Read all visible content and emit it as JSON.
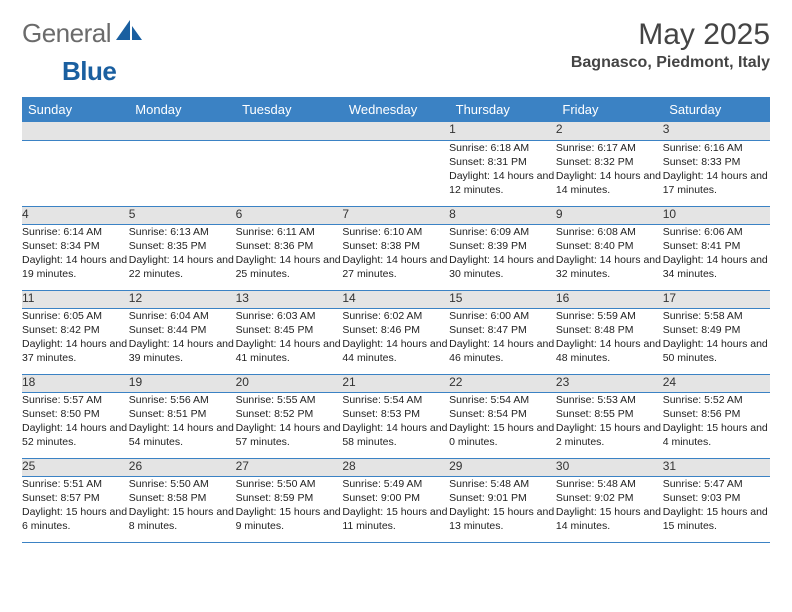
{
  "logo": {
    "word1": "General",
    "word2": "Blue"
  },
  "title": "May 2025",
  "location": "Bagnasco, Piedmont, Italy",
  "headers": [
    "Sunday",
    "Monday",
    "Tuesday",
    "Wednesday",
    "Thursday",
    "Friday",
    "Saturday"
  ],
  "colors": {
    "header_bg": "#3b82c4",
    "header_fg": "#ffffff",
    "daynum_bg": "#e4e4e4",
    "rule": "#3b82c4",
    "logo_gray": "#6b6b6b",
    "logo_blue": "#1a5fa0"
  },
  "weeks": [
    [
      null,
      null,
      null,
      null,
      {
        "n": "1",
        "sr": "6:18 AM",
        "ss": "8:31 PM",
        "dl": "14 hours and 12 minutes."
      },
      {
        "n": "2",
        "sr": "6:17 AM",
        "ss": "8:32 PM",
        "dl": "14 hours and 14 minutes."
      },
      {
        "n": "3",
        "sr": "6:16 AM",
        "ss": "8:33 PM",
        "dl": "14 hours and 17 minutes."
      }
    ],
    [
      {
        "n": "4",
        "sr": "6:14 AM",
        "ss": "8:34 PM",
        "dl": "14 hours and 19 minutes."
      },
      {
        "n": "5",
        "sr": "6:13 AM",
        "ss": "8:35 PM",
        "dl": "14 hours and 22 minutes."
      },
      {
        "n": "6",
        "sr": "6:11 AM",
        "ss": "8:36 PM",
        "dl": "14 hours and 25 minutes."
      },
      {
        "n": "7",
        "sr": "6:10 AM",
        "ss": "8:38 PM",
        "dl": "14 hours and 27 minutes."
      },
      {
        "n": "8",
        "sr": "6:09 AM",
        "ss": "8:39 PM",
        "dl": "14 hours and 30 minutes."
      },
      {
        "n": "9",
        "sr": "6:08 AM",
        "ss": "8:40 PM",
        "dl": "14 hours and 32 minutes."
      },
      {
        "n": "10",
        "sr": "6:06 AM",
        "ss": "8:41 PM",
        "dl": "14 hours and 34 minutes."
      }
    ],
    [
      {
        "n": "11",
        "sr": "6:05 AM",
        "ss": "8:42 PM",
        "dl": "14 hours and 37 minutes."
      },
      {
        "n": "12",
        "sr": "6:04 AM",
        "ss": "8:44 PM",
        "dl": "14 hours and 39 minutes."
      },
      {
        "n": "13",
        "sr": "6:03 AM",
        "ss": "8:45 PM",
        "dl": "14 hours and 41 minutes."
      },
      {
        "n": "14",
        "sr": "6:02 AM",
        "ss": "8:46 PM",
        "dl": "14 hours and 44 minutes."
      },
      {
        "n": "15",
        "sr": "6:00 AM",
        "ss": "8:47 PM",
        "dl": "14 hours and 46 minutes."
      },
      {
        "n": "16",
        "sr": "5:59 AM",
        "ss": "8:48 PM",
        "dl": "14 hours and 48 minutes."
      },
      {
        "n": "17",
        "sr": "5:58 AM",
        "ss": "8:49 PM",
        "dl": "14 hours and 50 minutes."
      }
    ],
    [
      {
        "n": "18",
        "sr": "5:57 AM",
        "ss": "8:50 PM",
        "dl": "14 hours and 52 minutes."
      },
      {
        "n": "19",
        "sr": "5:56 AM",
        "ss": "8:51 PM",
        "dl": "14 hours and 54 minutes."
      },
      {
        "n": "20",
        "sr": "5:55 AM",
        "ss": "8:52 PM",
        "dl": "14 hours and 57 minutes."
      },
      {
        "n": "21",
        "sr": "5:54 AM",
        "ss": "8:53 PM",
        "dl": "14 hours and 58 minutes."
      },
      {
        "n": "22",
        "sr": "5:54 AM",
        "ss": "8:54 PM",
        "dl": "15 hours and 0 minutes."
      },
      {
        "n": "23",
        "sr": "5:53 AM",
        "ss": "8:55 PM",
        "dl": "15 hours and 2 minutes."
      },
      {
        "n": "24",
        "sr": "5:52 AM",
        "ss": "8:56 PM",
        "dl": "15 hours and 4 minutes."
      }
    ],
    [
      {
        "n": "25",
        "sr": "5:51 AM",
        "ss": "8:57 PM",
        "dl": "15 hours and 6 minutes."
      },
      {
        "n": "26",
        "sr": "5:50 AM",
        "ss": "8:58 PM",
        "dl": "15 hours and 8 minutes."
      },
      {
        "n": "27",
        "sr": "5:50 AM",
        "ss": "8:59 PM",
        "dl": "15 hours and 9 minutes."
      },
      {
        "n": "28",
        "sr": "5:49 AM",
        "ss": "9:00 PM",
        "dl": "15 hours and 11 minutes."
      },
      {
        "n": "29",
        "sr": "5:48 AM",
        "ss": "9:01 PM",
        "dl": "15 hours and 13 minutes."
      },
      {
        "n": "30",
        "sr": "5:48 AM",
        "ss": "9:02 PM",
        "dl": "15 hours and 14 minutes."
      },
      {
        "n": "31",
        "sr": "5:47 AM",
        "ss": "9:03 PM",
        "dl": "15 hours and 15 minutes."
      }
    ]
  ],
  "labels": {
    "sunrise": "Sunrise:",
    "sunset": "Sunset:",
    "daylight": "Daylight:"
  }
}
